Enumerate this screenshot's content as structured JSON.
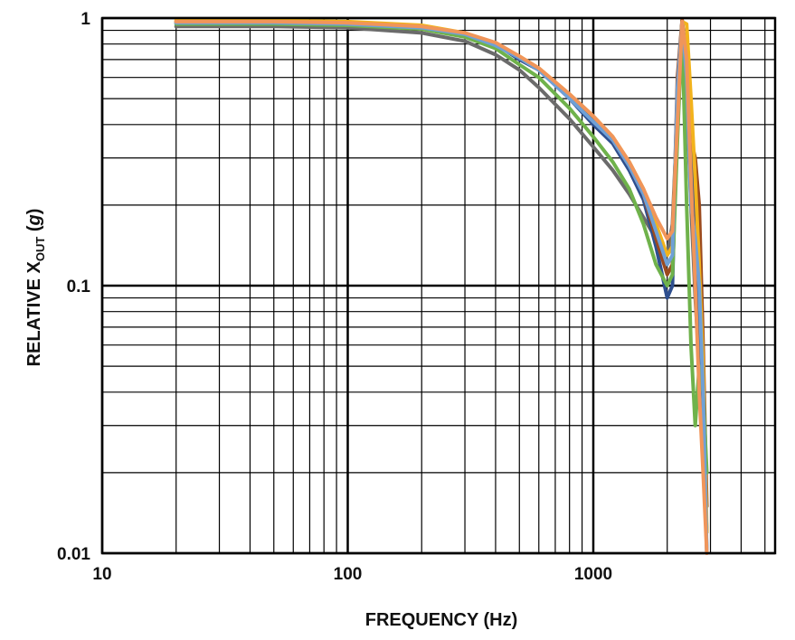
{
  "chart_data": {
    "type": "line",
    "x_scale": "log",
    "y_scale": "log",
    "xlim": [
      10,
      5500
    ],
    "ylim": [
      0.01,
      1
    ],
    "x_ticks": [
      10,
      100,
      1000
    ],
    "x_tick_labels": [
      "10",
      "100",
      "1000"
    ],
    "y_ticks": [
      0.01,
      0.1,
      1
    ],
    "y_tick_labels": [
      "0.01",
      "0.1",
      "1"
    ],
    "xlabel": "FREQUENCY (Hz)",
    "ylabel": {
      "prefix": "RELATIVE X",
      "subscript": "OUT",
      "suffix": " (",
      "italic": "g",
      "close": ")"
    },
    "grid": true,
    "legend": "none",
    "series": [
      {
        "name": "gray",
        "color": "#6b6b6b",
        "x": [
          20,
          50,
          100,
          200,
          300,
          400,
          500,
          600,
          800,
          1000,
          1200,
          1400,
          1600,
          1800,
          2000,
          2100,
          2200,
          2300,
          2400,
          2500,
          2600,
          2700,
          2800,
          2900
        ],
        "y": [
          0.93,
          0.93,
          0.92,
          0.88,
          0.82,
          0.73,
          0.64,
          0.55,
          0.42,
          0.33,
          0.27,
          0.22,
          0.18,
          0.15,
          0.13,
          0.17,
          0.45,
          0.95,
          0.5,
          0.2,
          0.09,
          0.05,
          0.025,
          0.012
        ]
      },
      {
        "name": "dark blue",
        "color": "#2e4f8f",
        "x": [
          20,
          50,
          100,
          200,
          300,
          400,
          500,
          600,
          800,
          1000,
          1200,
          1400,
          1600,
          1800,
          2000,
          2100,
          2200,
          2300,
          2400,
          2500,
          2600,
          2700,
          2800,
          2900
        ],
        "y": [
          0.96,
          0.96,
          0.95,
          0.92,
          0.86,
          0.8,
          0.7,
          0.64,
          0.5,
          0.4,
          0.34,
          0.27,
          0.21,
          0.14,
          0.09,
          0.1,
          0.5,
          0.98,
          0.7,
          0.4,
          0.2,
          0.08,
          0.03,
          0.01
        ]
      },
      {
        "name": "brown",
        "color": "#9b4a1e",
        "x": [
          20,
          50,
          100,
          200,
          300,
          400,
          500,
          600,
          800,
          1000,
          1200,
          1400,
          1600,
          1800,
          2000,
          2100,
          2200,
          2300,
          2400,
          2500,
          2600,
          2700,
          2800,
          2900
        ],
        "y": [
          0.97,
          0.97,
          0.96,
          0.93,
          0.87,
          0.8,
          0.71,
          0.64,
          0.51,
          0.42,
          0.35,
          0.28,
          0.22,
          0.15,
          0.11,
          0.12,
          0.6,
          0.98,
          0.6,
          0.35,
          0.3,
          0.2,
          0.06,
          0.015
        ]
      },
      {
        "name": "yellow",
        "color": "#f2b31c",
        "x": [
          20,
          50,
          100,
          200,
          300,
          400,
          500,
          600,
          800,
          1000,
          1200,
          1400,
          1600,
          1800,
          2000,
          2100,
          2200,
          2300,
          2400,
          2500,
          2600,
          2700,
          2800,
          2900
        ],
        "y": [
          0.98,
          0.98,
          0.97,
          0.94,
          0.88,
          0.8,
          0.72,
          0.65,
          0.52,
          0.43,
          0.36,
          0.29,
          0.23,
          0.17,
          0.13,
          0.14,
          0.5,
          0.97,
          0.95,
          0.5,
          0.25,
          0.12,
          0.05,
          0.012
        ]
      },
      {
        "name": "green",
        "color": "#6fb24b",
        "x": [
          20,
          50,
          100,
          200,
          300,
          400,
          500,
          600,
          800,
          1000,
          1200,
          1400,
          1600,
          1800,
          2000,
          2100,
          2200,
          2300,
          2400,
          2500,
          2600,
          2700,
          2800,
          2900
        ],
        "y": [
          0.95,
          0.95,
          0.94,
          0.91,
          0.85,
          0.77,
          0.67,
          0.6,
          0.46,
          0.36,
          0.29,
          0.23,
          0.17,
          0.12,
          0.1,
          0.11,
          0.35,
          0.9,
          0.2,
          0.06,
          0.03,
          0.05,
          0.04,
          0.02
        ]
      },
      {
        "name": "light blue",
        "color": "#6fa0d6",
        "x": [
          20,
          50,
          100,
          200,
          300,
          400,
          500,
          600,
          800,
          1000,
          1200,
          1400,
          1600,
          1800,
          2000,
          2100,
          2200,
          2300,
          2400,
          2500,
          2600,
          2700,
          2800,
          2900
        ],
        "y": [
          0.96,
          0.96,
          0.95,
          0.92,
          0.87,
          0.79,
          0.71,
          0.64,
          0.5,
          0.41,
          0.35,
          0.28,
          0.22,
          0.16,
          0.12,
          0.13,
          0.55,
          0.96,
          0.6,
          0.2,
          0.15,
          0.1,
          0.04,
          0.01
        ]
      },
      {
        "name": "orange",
        "color": "#f0955a",
        "x": [
          20,
          50,
          100,
          200,
          300,
          400,
          500,
          600,
          800,
          1000,
          1200,
          1400,
          1600,
          1800,
          2000,
          2100,
          2200,
          2300,
          2400,
          2500,
          2600,
          2700,
          2800,
          2900
        ],
        "y": [
          0.97,
          0.97,
          0.96,
          0.93,
          0.88,
          0.81,
          0.72,
          0.65,
          0.52,
          0.43,
          0.36,
          0.29,
          0.23,
          0.18,
          0.15,
          0.16,
          0.4,
          0.97,
          0.7,
          0.25,
          0.1,
          0.04,
          0.02,
          0.01
        ]
      }
    ]
  }
}
